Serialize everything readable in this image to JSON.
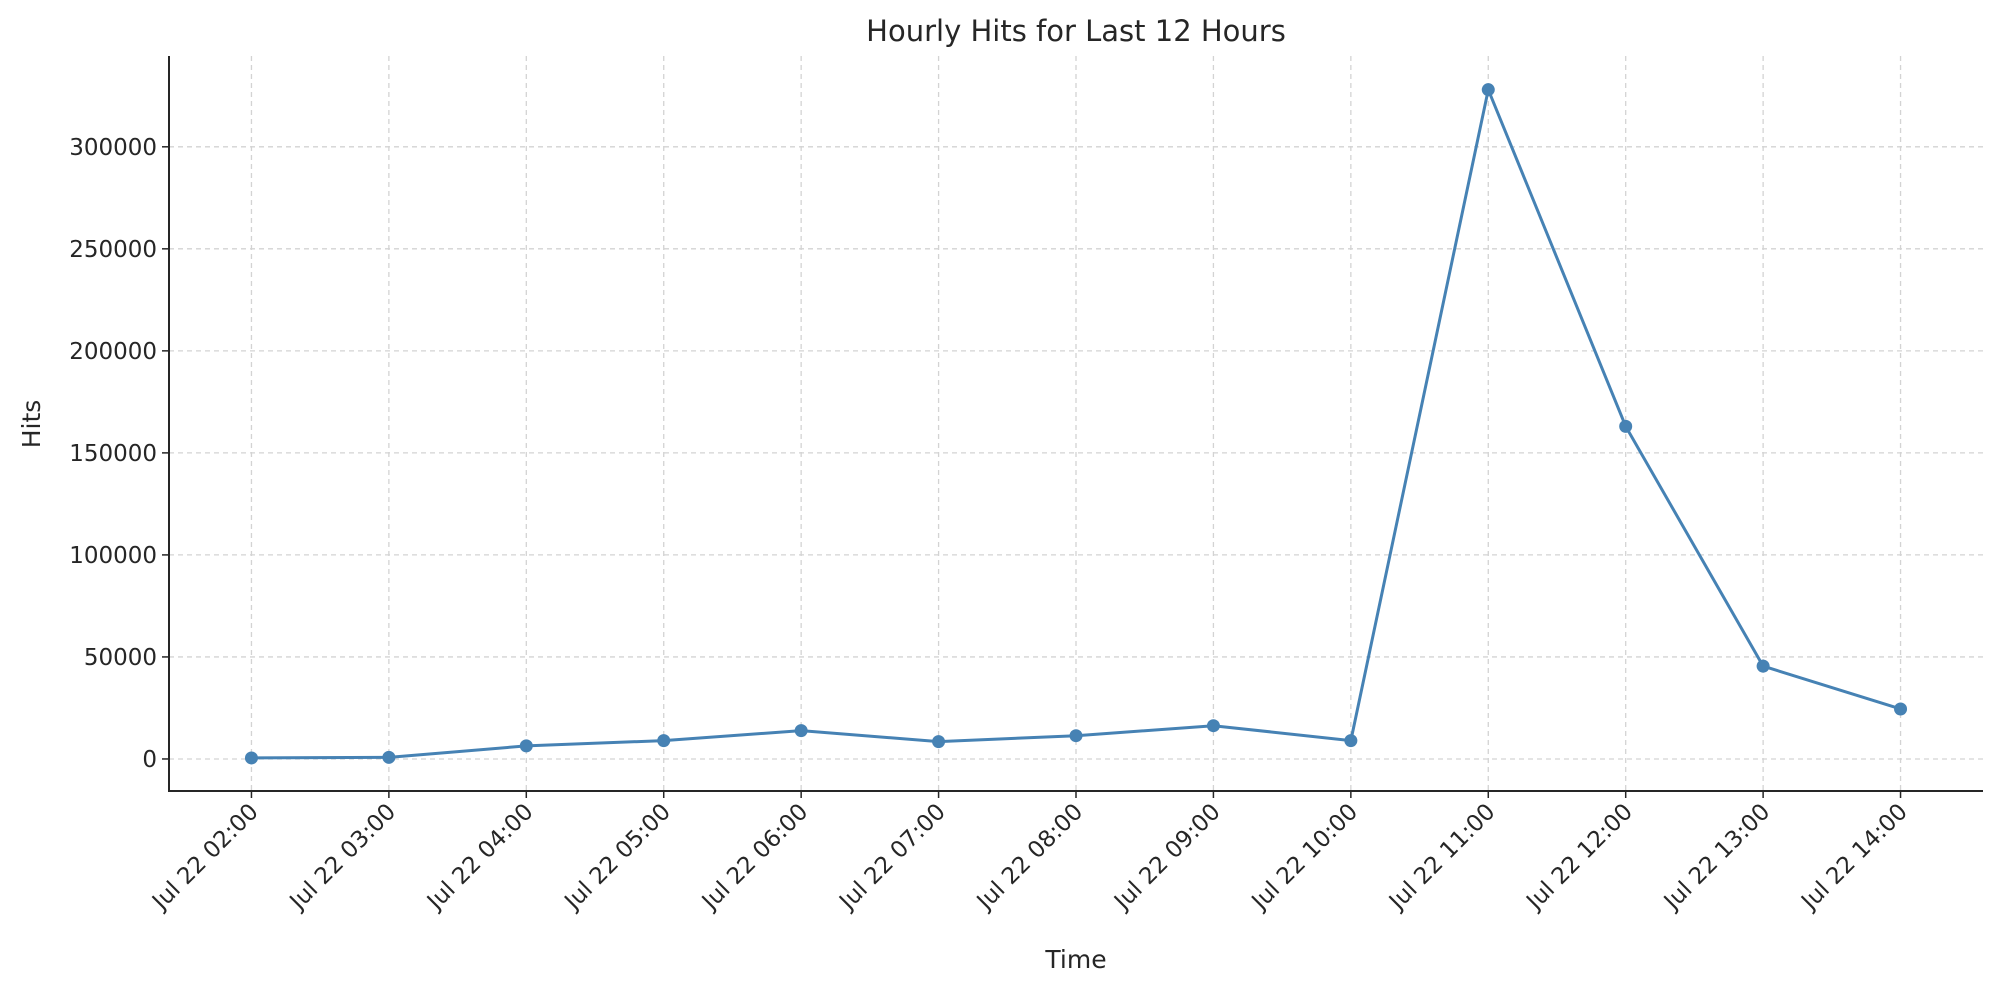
{
  "chart_data": {
    "type": "line",
    "title": "Hourly Hits for Last 12 Hours",
    "xlabel": "Time",
    "ylabel": "Hits",
    "categories": [
      "Jul 22 02:00",
      "Jul 22 03:00",
      "Jul 22 04:00",
      "Jul 22 05:00",
      "Jul 22 06:00",
      "Jul 22 07:00",
      "Jul 22 08:00",
      "Jul 22 09:00",
      "Jul 22 10:00",
      "Jul 22 11:00",
      "Jul 22 12:00",
      "Jul 22 13:00",
      "Jul 22 14:00"
    ],
    "values": [
      500,
      800,
      6400,
      9000,
      13900,
      8500,
      11400,
      16300,
      9000,
      328000,
      163000,
      45500,
      24500
    ],
    "yticks": [
      0,
      50000,
      100000,
      150000,
      200000,
      250000,
      300000
    ],
    "ylim": [
      -15700,
      344500
    ],
    "grid": true,
    "marker": "circle",
    "colors": {
      "line": "#4682b4",
      "grid": "#d3d3d3",
      "axis": "#262626"
    }
  }
}
